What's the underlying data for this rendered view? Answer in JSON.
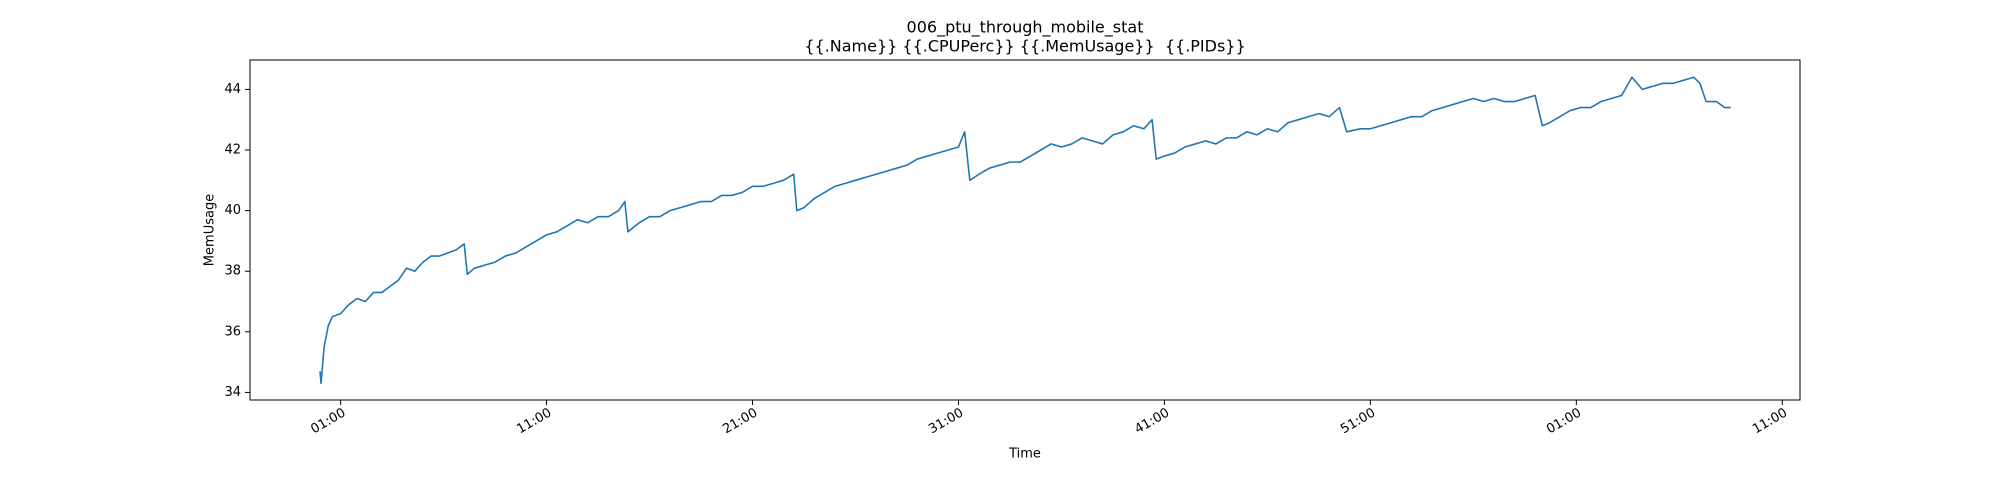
{
  "chart_data": {
    "type": "line",
    "title": "006_ptu_through_mobile_stat",
    "subtitle": "{{.Name}} {{.CPUPerc}} {{.MemUsage}}  {{.PIDs}}",
    "x_label": "Time",
    "y_label": "MemUsage",
    "color": "#1f77b4",
    "x": [
      -1,
      -0.95,
      -0.8,
      -0.6,
      -0.4,
      0,
      0.4,
      0.8,
      1.2,
      1.6,
      2.0,
      2.4,
      2.8,
      3.2,
      3.6,
      4.0,
      4.4,
      4.8,
      5.2,
      5.6,
      6.0,
      6.15,
      6.5,
      7,
      7.5,
      8,
      8.5,
      9,
      9.5,
      10,
      10.5,
      11,
      11.5,
      12,
      12.5,
      13,
      13.5,
      13.8,
      13.95,
      14.5,
      15,
      15.5,
      16,
      16.5,
      17,
      17.5,
      18,
      18.5,
      19,
      19.5,
      20,
      20.5,
      21,
      21.5,
      22,
      22.15,
      22.5,
      23,
      23.5,
      24,
      24.5,
      25,
      25.5,
      26,
      26.5,
      27,
      27.5,
      28,
      28.5,
      29,
      29.5,
      30,
      30.3,
      30.55,
      31,
      31.5,
      32,
      32.5,
      33,
      33.5,
      34,
      34.5,
      35,
      35.5,
      36,
      36.5,
      37,
      37.5,
      38,
      38.5,
      39,
      39.4,
      39.6,
      40,
      40.5,
      41,
      41.5,
      42,
      42.5,
      43,
      43.5,
      44,
      44.5,
      45,
      45.5,
      46,
      46.5,
      47,
      47.5,
      48,
      48.5,
      48.85,
      49.5,
      50,
      50.5,
      51,
      51.5,
      52,
      52.5,
      53,
      53.5,
      54,
      54.5,
      55,
      55.5,
      56,
      56.5,
      57,
      57.5,
      58,
      58.35,
      58.7,
      59.2,
      59.7,
      60.2,
      60.7,
      61.2,
      61.7,
      62.2,
      62.7,
      63.2,
      63.7,
      64.2,
      64.7,
      65.2,
      65.7,
      66,
      66.3,
      66.8,
      67.2,
      67.5
    ],
    "values": [
      34.7,
      34.3,
      35.5,
      36.2,
      36.5,
      36.6,
      36.9,
      37.1,
      37.0,
      37.3,
      37.3,
      37.5,
      37.7,
      38.1,
      38.0,
      38.3,
      38.5,
      38.5,
      38.6,
      38.7,
      38.9,
      37.9,
      38.1,
      38.2,
      38.3,
      38.5,
      38.6,
      38.8,
      39.0,
      39.2,
      39.3,
      39.5,
      39.7,
      39.6,
      39.8,
      39.8,
      40.0,
      40.3,
      39.3,
      39.6,
      39.8,
      39.8,
      40.0,
      40.1,
      40.2,
      40.3,
      40.3,
      40.5,
      40.5,
      40.6,
      40.8,
      40.8,
      40.9,
      41.0,
      41.2,
      40.0,
      40.1,
      40.4,
      40.6,
      40.8,
      40.9,
      41.0,
      41.1,
      41.2,
      41.3,
      41.4,
      41.5,
      41.7,
      41.8,
      41.9,
      42.0,
      42.1,
      42.6,
      41.0,
      41.2,
      41.4,
      41.5,
      41.6,
      41.6,
      41.8,
      42.0,
      42.2,
      42.1,
      42.2,
      42.4,
      42.3,
      42.2,
      42.5,
      42.6,
      42.8,
      42.7,
      43.0,
      41.7,
      41.8,
      41.9,
      42.1,
      42.2,
      42.3,
      42.2,
      42.4,
      42.4,
      42.6,
      42.5,
      42.7,
      42.6,
      42.9,
      43.0,
      43.1,
      43.2,
      43.1,
      43.4,
      42.6,
      42.7,
      42.7,
      42.8,
      42.9,
      43.0,
      43.1,
      43.1,
      43.3,
      43.4,
      43.5,
      43.6,
      43.7,
      43.6,
      43.7,
      43.6,
      43.6,
      43.7,
      43.8,
      42.8,
      42.9,
      43.1,
      43.3,
      43.4,
      43.4,
      43.6,
      43.7,
      43.8,
      44.4,
      44.0,
      44.1,
      44.2,
      44.2,
      44.3,
      44.4,
      44.2,
      43.6,
      43.6,
      43.4,
      43.4
    ],
    "xlim": [
      -4.4,
      70.86
    ],
    "xticks": [
      {
        "value": 0,
        "label": "01:00"
      },
      {
        "value": 10,
        "label": "11:00"
      },
      {
        "value": 20,
        "label": "21:00"
      },
      {
        "value": 30,
        "label": "31:00"
      },
      {
        "value": 40,
        "label": "41:00"
      },
      {
        "value": 50,
        "label": "51:00"
      },
      {
        "value": 60,
        "label": "01:00"
      },
      {
        "value": 70,
        "label": "11:00"
      }
    ],
    "ylim": [
      33.75,
      44.97
    ],
    "yticks": [
      34,
      36,
      38,
      40,
      42,
      44
    ],
    "grid": false
  }
}
